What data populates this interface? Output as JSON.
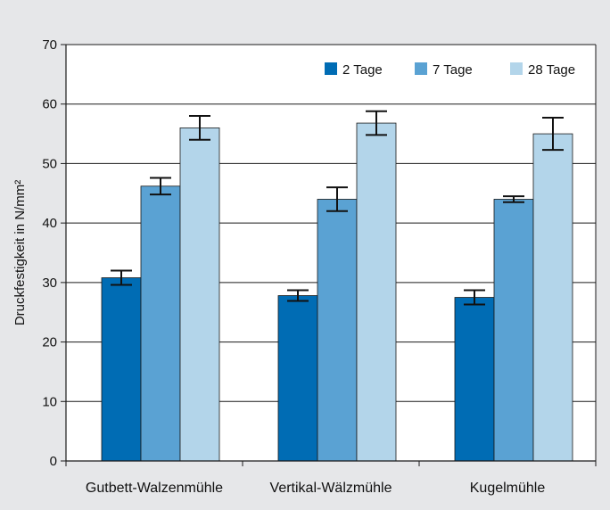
{
  "chart_data": {
    "type": "bar",
    "title": "",
    "xlabel": "",
    "ylabel": "Druckfestigkeit in N/mm²",
    "ylim": [
      0,
      70
    ],
    "yticks": [
      "0",
      "10",
      "20",
      "30",
      "40",
      "50",
      "60",
      "70"
    ],
    "grid": true,
    "legend_position": "top-right",
    "categories": [
      "Gutbett-Walzenmühle",
      "Vertikal-Wälzmühle",
      "Kugelmühle"
    ],
    "series": [
      {
        "name": "2 Tage",
        "color": "#006cb4",
        "values": [
          30.8,
          27.8,
          27.5
        ],
        "error": [
          1.2,
          0.9,
          1.2
        ]
      },
      {
        "name": "7 Tage",
        "color": "#5aa2d3",
        "values": [
          46.2,
          44.0,
          44.0
        ],
        "error": [
          1.4,
          2.0,
          0.5
        ]
      },
      {
        "name": "28 Tage",
        "color": "#b3d5ea",
        "values": [
          56.0,
          56.8,
          55.0
        ],
        "error": [
          2.0,
          2.0,
          2.7
        ]
      }
    ]
  }
}
